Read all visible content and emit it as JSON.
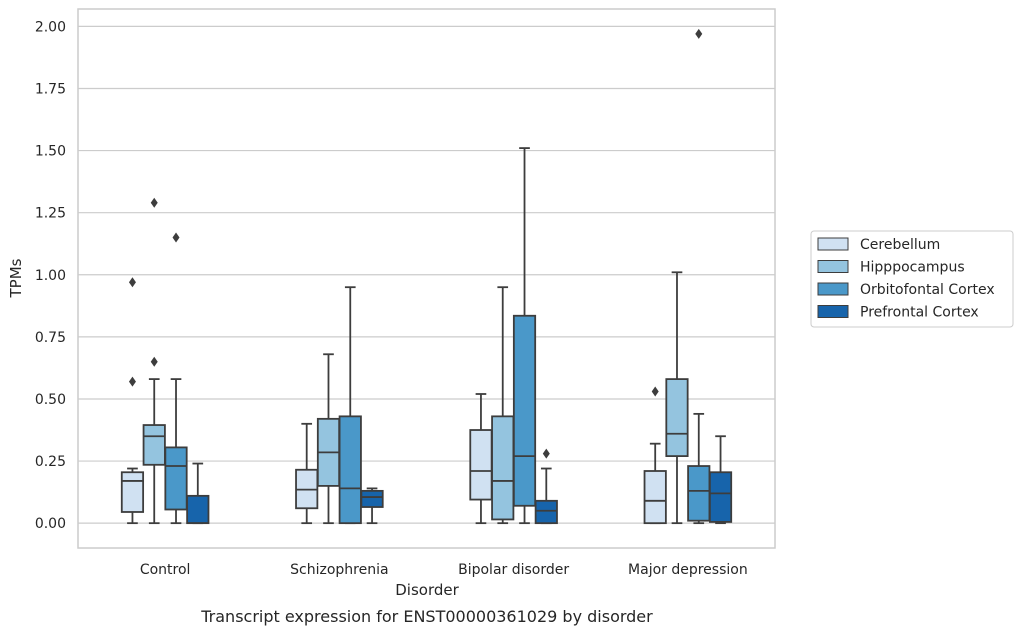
{
  "caption": "Transcript expression for ENST00000361029 by disorder",
  "colors": {
    "Cerebellum": "#d0e1f2",
    "Hipppocampus": "#94c4df",
    "Orbitofontal Cortex": "#4a98c9",
    "Prefrontal Cortex": "#1764ab",
    "edge": "#3d3d3d",
    "grid": "#cccccc",
    "axes": "#cccccc"
  },
  "chart_data": {
    "type": "box",
    "title": "",
    "xlabel": "Disorder",
    "ylabel": "TPMs",
    "ylim": [
      -0.1,
      2.07
    ],
    "yticks": [
      0.0,
      0.25,
      0.5,
      0.75,
      1.0,
      1.25,
      1.5,
      1.75,
      2.0
    ],
    "ytick_labels": [
      "0.00",
      "0.25",
      "0.50",
      "0.75",
      "1.00",
      "1.25",
      "1.50",
      "1.75",
      "2.00"
    ],
    "grid": "horizontal",
    "legend": {
      "position": "right",
      "entries": [
        "Cerebellum",
        "Hipppocampus",
        "Orbitofontal Cortex",
        "Prefrontal Cortex"
      ]
    },
    "categories": [
      "Control",
      "Schizophrenia",
      "Bipolar disorder",
      "Major depression"
    ],
    "series": [
      {
        "name": "Cerebellum",
        "boxes": [
          {
            "category": "Control",
            "whislo": 0.0,
            "q1": 0.045,
            "med": 0.17,
            "q3": 0.205,
            "whishi": 0.22,
            "fliers": [
              0.57,
              0.97
            ]
          },
          {
            "category": "Schizophrenia",
            "whislo": 0.0,
            "q1": 0.06,
            "med": 0.135,
            "q3": 0.215,
            "whishi": 0.4,
            "fliers": []
          },
          {
            "category": "Bipolar disorder",
            "whislo": 0.0,
            "q1": 0.095,
            "med": 0.21,
            "q3": 0.375,
            "whishi": 0.52,
            "fliers": []
          },
          {
            "category": "Major depression",
            "whislo": 0.0,
            "q1": 0.0,
            "med": 0.09,
            "q3": 0.21,
            "whishi": 0.32,
            "fliers": [
              0.53
            ]
          }
        ]
      },
      {
        "name": "Hipppocampus",
        "boxes": [
          {
            "category": "Control",
            "whislo": 0.0,
            "q1": 0.235,
            "med": 0.35,
            "q3": 0.395,
            "whishi": 0.58,
            "fliers": [
              0.65,
              1.29
            ]
          },
          {
            "category": "Schizophrenia",
            "whislo": 0.0,
            "q1": 0.15,
            "med": 0.285,
            "q3": 0.42,
            "whishi": 0.68,
            "fliers": []
          },
          {
            "category": "Bipolar disorder",
            "whislo": 0.0,
            "q1": 0.015,
            "med": 0.17,
            "q3": 0.43,
            "whishi": 0.95,
            "fliers": []
          },
          {
            "category": "Major depression",
            "whislo": 0.0,
            "q1": 0.27,
            "med": 0.36,
            "q3": 0.58,
            "whishi": 1.01,
            "fliers": []
          }
        ]
      },
      {
        "name": "Orbitofontal Cortex",
        "boxes": [
          {
            "category": "Control",
            "whislo": 0.0,
            "q1": 0.055,
            "med": 0.23,
            "q3": 0.305,
            "whishi": 0.58,
            "fliers": [
              1.15
            ]
          },
          {
            "category": "Schizophrenia",
            "whislo": 0.0,
            "q1": 0.0,
            "med": 0.14,
            "q3": 0.43,
            "whishi": 0.95,
            "fliers": []
          },
          {
            "category": "Bipolar disorder",
            "whislo": 0.0,
            "q1": 0.07,
            "med": 0.27,
            "q3": 0.835,
            "whishi": 1.51,
            "fliers": []
          },
          {
            "category": "Major depression",
            "whislo": 0.0,
            "q1": 0.01,
            "med": 0.13,
            "q3": 0.23,
            "whishi": 0.44,
            "fliers": [
              1.97
            ]
          }
        ]
      },
      {
        "name": "Prefrontal Cortex",
        "boxes": [
          {
            "category": "Control",
            "whislo": 0.0,
            "q1": 0.0,
            "med": 0.0,
            "q3": 0.11,
            "whishi": 0.24,
            "fliers": []
          },
          {
            "category": "Schizophrenia",
            "whislo": 0.0,
            "q1": 0.065,
            "med": 0.105,
            "q3": 0.13,
            "whishi": 0.14,
            "fliers": []
          },
          {
            "category": "Bipolar disorder",
            "whislo": 0.0,
            "q1": 0.0,
            "med": 0.05,
            "q3": 0.09,
            "whishi": 0.22,
            "fliers": [
              0.28
            ]
          },
          {
            "category": "Major depression",
            "whislo": 0.0,
            "q1": 0.005,
            "med": 0.12,
            "q3": 0.205,
            "whishi": 0.35,
            "fliers": []
          }
        ]
      }
    ]
  }
}
